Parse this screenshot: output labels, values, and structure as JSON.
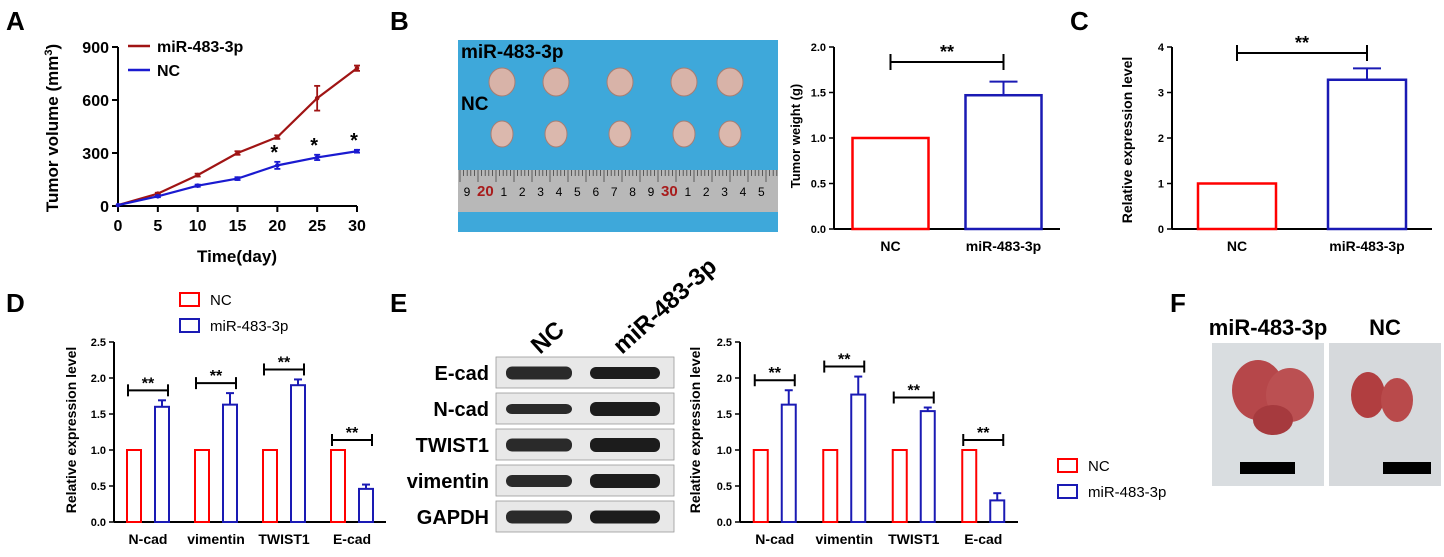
{
  "panel_letters": [
    "A",
    "B",
    "C",
    "D",
    "E",
    "F"
  ],
  "colors": {
    "nc": "#ff0000",
    "mir": "#1a1ab4",
    "line_mir": "#a01414",
    "line_nc": "#1a1ad0",
    "photo_bg": "#3aa6d8"
  },
  "chart_data": [
    {
      "id": "A",
      "type": "line",
      "xlabel": "Time(day)",
      "ylabel": "Tumor volume (mm³)",
      "ylabel_parts": {
        "main": "Tumor volume (mm",
        "sup": "3",
        "end": ")"
      },
      "xlim": [
        0,
        30
      ],
      "ylim": [
        0,
        900
      ],
      "xticks": [
        "0",
        "5",
        "10",
        "15",
        "20",
        "25",
        "30"
      ],
      "yticks": [
        "0",
        "300",
        "600",
        "900"
      ],
      "x": [
        0,
        5,
        10,
        15,
        20,
        25,
        30
      ],
      "series": [
        {
          "name": "miR-483-3p",
          "values": [
            5,
            70,
            175,
            300,
            390,
            610,
            780
          ],
          "errors": [
            0,
            5,
            8,
            10,
            10,
            70,
            15
          ]
        },
        {
          "name": "NC",
          "values": [
            5,
            55,
            115,
            155,
            230,
            275,
            310
          ],
          "errors": [
            0,
            5,
            6,
            8,
            20,
            15,
            8
          ]
        }
      ],
      "annotations": [
        {
          "x": 20,
          "text": "*"
        },
        {
          "x": 25,
          "text": "*"
        },
        {
          "x": 30,
          "text": "*"
        }
      ],
      "legend": "top-left"
    },
    {
      "id": "B",
      "type": "bar",
      "ylabel": "Tumor weight (g)",
      "ylim": [
        0,
        2.0
      ],
      "yticks": [
        "0.0",
        "0.5",
        "1.0",
        "1.5",
        "2.0"
      ],
      "categories": [
        "NC",
        "miR-483-3p"
      ],
      "values": [
        1.0,
        1.47
      ],
      "errors": [
        0,
        0.15
      ],
      "significance": "**"
    },
    {
      "id": "C",
      "type": "bar",
      "ylabel": "Relative expression level",
      "ylim": [
        0,
        4
      ],
      "yticks": [
        "0",
        "1",
        "2",
        "3",
        "4"
      ],
      "categories": [
        "NC",
        "miR-483-3p"
      ],
      "values": [
        1.0,
        3.28
      ],
      "errors": [
        0,
        0.25
      ],
      "significance": "**"
    },
    {
      "id": "D",
      "type": "bar",
      "ylabel": "Relative expression level",
      "ylim": [
        0,
        2.5
      ],
      "yticks": [
        "0.0",
        "0.5",
        "1.0",
        "1.5",
        "2.0",
        "2.5"
      ],
      "categories": [
        "N-cad",
        "vimentin",
        "TWIST1",
        "E-cad"
      ],
      "series": [
        {
          "name": "NC",
          "values": [
            1.0,
            1.0,
            1.0,
            1.0
          ],
          "errors": [
            0,
            0,
            0,
            0
          ]
        },
        {
          "name": "miR-483-3p",
          "values": [
            1.6,
            1.63,
            1.9,
            0.46
          ],
          "errors": [
            0.09,
            0.16,
            0.08,
            0.06
          ]
        }
      ],
      "significance": [
        "**",
        "**",
        "**",
        "**"
      ],
      "legend": "top"
    },
    {
      "id": "E",
      "type": "bar",
      "ylabel": "Relative expression level",
      "ylim": [
        0,
        2.5
      ],
      "yticks": [
        "0.0",
        "0.5",
        "1.0",
        "1.5",
        "2.0",
        "2.5"
      ],
      "categories": [
        "N-cad",
        "vimentin",
        "TWIST1",
        "E-cad"
      ],
      "series": [
        {
          "name": "NC",
          "values": [
            1.0,
            1.0,
            1.0,
            1.0
          ],
          "errors": [
            0,
            0,
            0,
            0
          ]
        },
        {
          "name": "miR-483-3p",
          "values": [
            1.63,
            1.77,
            1.54,
            0.3
          ],
          "errors": [
            0.2,
            0.25,
            0.05,
            0.1
          ]
        }
      ],
      "significance": [
        "**",
        "**",
        "**",
        "**"
      ],
      "legend": "right"
    }
  ],
  "photo_B": {
    "label_top": "miR-483-3p",
    "label_bottom": "NC",
    "ruler_numbers": [
      "9",
      "20",
      "1",
      "2",
      "3",
      "4",
      "5",
      "6",
      "7",
      "8",
      "9",
      "30",
      "1",
      "2",
      "3",
      "4",
      "5"
    ]
  },
  "blot_E": {
    "lanes": [
      "NC",
      "miR-483-3p"
    ],
    "rows": [
      "E-cad",
      "N-cad",
      "TWIST1",
      "vimentin",
      "GAPDH"
    ]
  },
  "photo_F": {
    "labels": [
      "miR-483-3p",
      "NC"
    ]
  }
}
